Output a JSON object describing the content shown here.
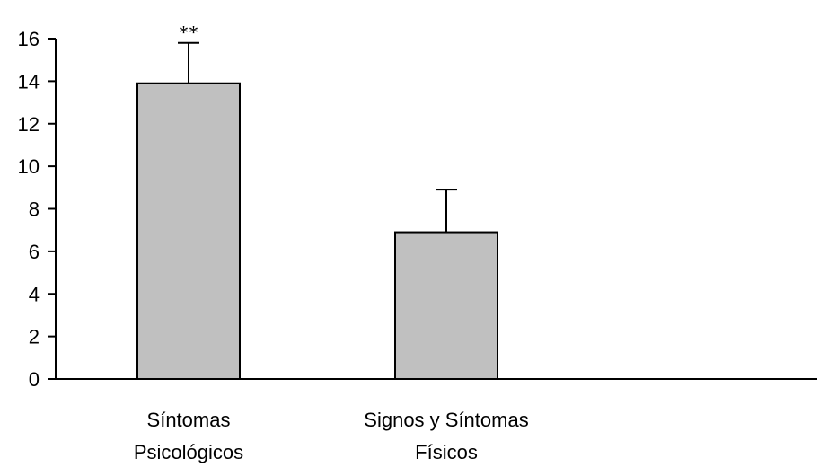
{
  "chart_data": {
    "type": "bar",
    "categories": [
      [
        "Síntomas",
        "Psicológicos"
      ],
      [
        "Signos y Síntomas",
        "Físicos"
      ]
    ],
    "values": [
      13.9,
      6.9
    ],
    "error_upper": [
      15.8,
      8.9
    ],
    "annotations": [
      "**",
      ""
    ],
    "title": "",
    "xlabel": "",
    "ylabel": "",
    "ylim": [
      0,
      16
    ],
    "yticks": [
      0,
      2,
      4,
      6,
      8,
      10,
      12,
      14,
      16
    ],
    "grid": false,
    "legend": "none",
    "colors": {
      "bar_fill": "#c0c0c0",
      "bar_stroke": "#000000",
      "axis": "#000000"
    }
  }
}
